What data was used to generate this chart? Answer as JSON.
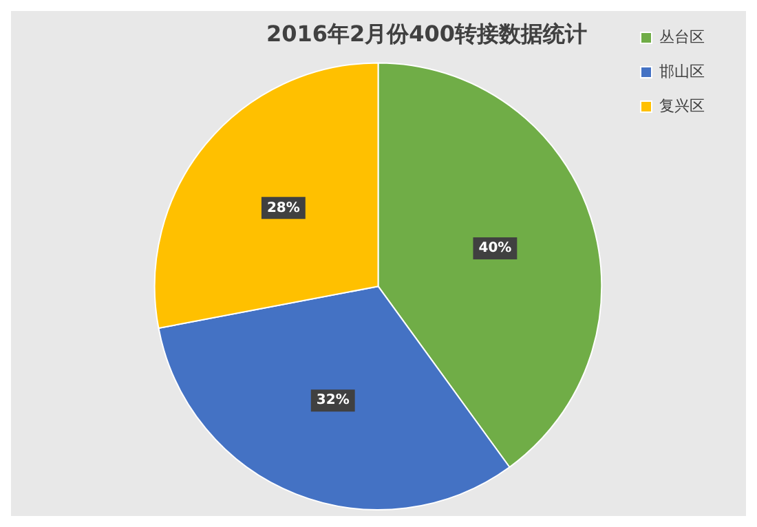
{
  "chart_data": {
    "type": "pie",
    "title": "2016年2月份400转接数据统计",
    "categories": [
      "丛台区",
      "邯山区",
      "复兴区"
    ],
    "values": [
      40,
      32,
      28
    ],
    "colors": [
      "#70ad47",
      "#4472c4",
      "#ffc000"
    ],
    "value_labels": [
      "40%",
      "32%",
      "28%"
    ],
    "legend": "top right"
  }
}
